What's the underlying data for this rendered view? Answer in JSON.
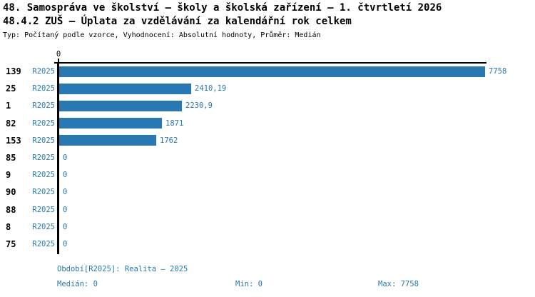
{
  "header": {
    "title": "48. Samospráva ve školství – školy a školská zařízení – 1. čtvrtletí 2026",
    "subtitle": "48.4.2 ZUŠ – Úplata za vzdělávání za kalendářní rok celkem",
    "meta": "Typ: Počítaný podle vzorce, Vyhodnocení: Absolutní hodnoty, Průměr: Medián"
  },
  "chart_data": {
    "type": "bar",
    "orientation": "horizontal",
    "title": "48.4.2 ZUŠ – Úplata za vzdělávání za kalendářní rok celkem",
    "axis_tick_label": "0",
    "series_label": "R2025",
    "categories": [
      "139",
      "25",
      "1",
      "82",
      "153",
      "85",
      "9",
      "90",
      "88",
      "8",
      "75"
    ],
    "values": [
      7758,
      2410.19,
      2230.9,
      1871,
      1762,
      0,
      0,
      0,
      0,
      0,
      0
    ],
    "value_labels": [
      "7758",
      "2410,19",
      "2230,9",
      "1871",
      "1762",
      "0",
      "0",
      "0",
      "0",
      "0",
      "0"
    ],
    "xlim": [
      0,
      7758
    ],
    "grid": false,
    "legend_position": "bottom",
    "bar_color": "#2878b4",
    "text_color": "#2878b4",
    "axis_color": "#000000"
  },
  "footer": {
    "period": "Období[R2025]: Realita – 2025",
    "median_label": "Medián: 0",
    "min_label": "Min: 0",
    "max_label": "Max: 7758"
  }
}
